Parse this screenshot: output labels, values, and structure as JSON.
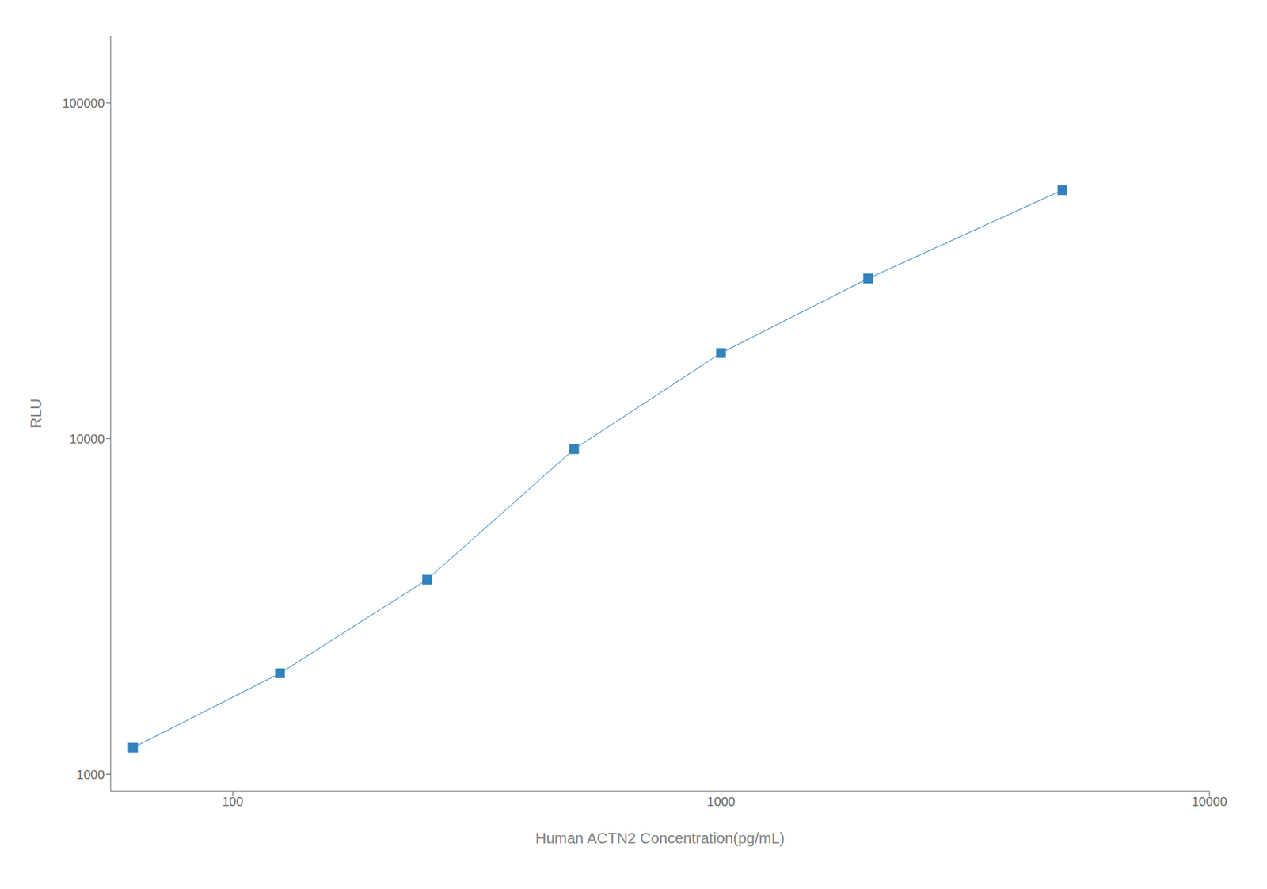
{
  "chart_data": {
    "type": "line",
    "xlabel": "Human ACTN2 Concentration(pg/mL)",
    "ylabel": "RLU",
    "x": [
      62.5,
      125,
      250,
      500,
      1000,
      2000,
      5000
    ],
    "values": [
      1200,
      2000,
      3800,
      9300,
      18000,
      30000,
      55000
    ],
    "xlim": [
      56.23413251903491,
      10000
    ],
    "ylim": [
      891.2509381337459,
      158489.3192461114
    ],
    "xticks": [
      100,
      1000,
      10000
    ],
    "yticks": [
      1000,
      10000,
      100000
    ],
    "log": true,
    "grid": false,
    "marker": "square"
  }
}
